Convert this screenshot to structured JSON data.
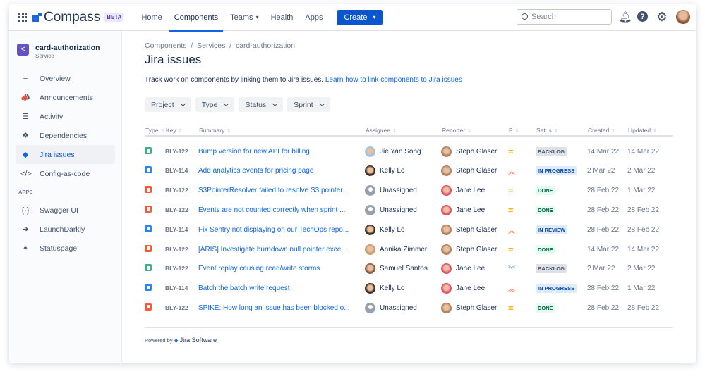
{
  "header": {
    "brand": "Compass",
    "beta": "BETA",
    "nav": [
      "Home",
      "Components",
      "Teams",
      "Health",
      "Apps"
    ],
    "active_nav": "Components",
    "create": "Create",
    "search_placeholder": "Search"
  },
  "sidebar": {
    "component_name": "card-authorization",
    "component_type": "Service",
    "items": [
      {
        "label": "Overview",
        "icon": "≡"
      },
      {
        "label": "Announcements",
        "icon": "📣"
      },
      {
        "label": "Activity",
        "icon": "☰"
      },
      {
        "label": "Dependencies",
        "icon": "❖"
      },
      {
        "label": "Jira issues",
        "icon": "◆",
        "selected": true
      },
      {
        "label": "Config-as-code",
        "icon": "</>"
      }
    ],
    "apps_label": "APPS",
    "apps": [
      {
        "label": "Swagger UI",
        "icon": "{·}"
      },
      {
        "label": "LaunchDarkly",
        "icon": "➔"
      },
      {
        "label": "Statuspage",
        "icon": "◓"
      }
    ]
  },
  "main": {
    "breadcrumb": "Components  /  Services  /  card-authorization",
    "title": "Jira issues",
    "description": "Track work on components by linking them to Jira issues.",
    "link": "Learn how to link components to Jira issues",
    "filters": [
      "Project",
      "Type",
      "Status",
      "Sprint"
    ],
    "columns": [
      "Type",
      "Key",
      "Summary",
      "Assignee",
      "Reporter",
      "P",
      "Satus",
      "Created",
      "Updated"
    ],
    "rows": [
      {
        "type": "story",
        "key": "BLY-122",
        "summary": "Bump version for new API for billing",
        "assignee": "Jie Yan Song",
        "reporter": "Steph Glaser",
        "priority": "medium",
        "status": "BACKLOG",
        "created": "14 Mar 22",
        "updated": "14 Mar 22"
      },
      {
        "type": "task",
        "key": "BLY-114",
        "summary": "Add analytics events for pricing page",
        "assignee": "Kelly Lo",
        "reporter": "Steph Glaser",
        "priority": "high",
        "status": "IN PROGRESS",
        "created": "2 Mar 22",
        "updated": "2 Mar 22"
      },
      {
        "type": "bug",
        "key": "BLY-122",
        "summary": "S3PointerResolver failed to resolve S3 pointer...",
        "assignee": "Unassigned",
        "reporter": "Jane Lee",
        "priority": "medium",
        "status": "DONE",
        "created": "28 Feb 22",
        "updated": "1 Mar 22"
      },
      {
        "type": "bug",
        "key": "BLY-122",
        "summary": "Events are not counted correctly when sprint ...",
        "assignee": "Unassigned",
        "reporter": "Jane Lee",
        "priority": "medium",
        "status": "DONE",
        "created": "28 Feb 22",
        "updated": "28 Feb 22"
      },
      {
        "type": "task",
        "key": "BLY-114",
        "summary": "Fix Sentry not displaying on our TechOps repo...",
        "assignee": "Kelly Lo",
        "reporter": "Steph Glaser",
        "priority": "high",
        "status": "IN REVIEW",
        "created": "28 Feb 22",
        "updated": "28 Feb 22"
      },
      {
        "type": "bug",
        "key": "BLY-122",
        "summary": "[ARIS] Investigate burndown null pointer exce...",
        "assignee": "Annika Zimmer",
        "reporter": "Steph Glaser",
        "priority": "medium",
        "status": "DONE",
        "created": "14 Mar 22",
        "updated": "14 Mar 22"
      },
      {
        "type": "story",
        "key": "BLY-122",
        "summary": "Event replay causing read/write storms",
        "assignee": "Samuel Santos",
        "reporter": "Jane Lee",
        "priority": "lowest",
        "status": "BACKLOG",
        "created": "2 Mar 22",
        "updated": "2 Mar 22"
      },
      {
        "type": "task",
        "key": "BLY-114",
        "summary": "Batch the batch write request",
        "assignee": "Kelly Lo",
        "reporter": "Jane Lee",
        "priority": "high",
        "status": "IN PROGRESS",
        "created": "28 Feb 22",
        "updated": "1 Mar 22"
      },
      {
        "type": "bug",
        "key": "BLY-122",
        "summary": "SPIKE: How long an issue has been blocked o...",
        "assignee": "Unassigned",
        "reporter": "Steph Glaser",
        "priority": "medium",
        "status": "DONE",
        "created": "28 Feb 22",
        "updated": "28 Feb 22"
      }
    ],
    "powered_by": "Powered by",
    "jira_software": "Jira Software"
  },
  "colors": {
    "accent": "#0c66e4",
    "story": "#36b37e",
    "task": "#2684ff",
    "bug": "#ff5630",
    "medium": "#ffab00",
    "high": "#ff5630",
    "lowest": "#2684ff"
  }
}
